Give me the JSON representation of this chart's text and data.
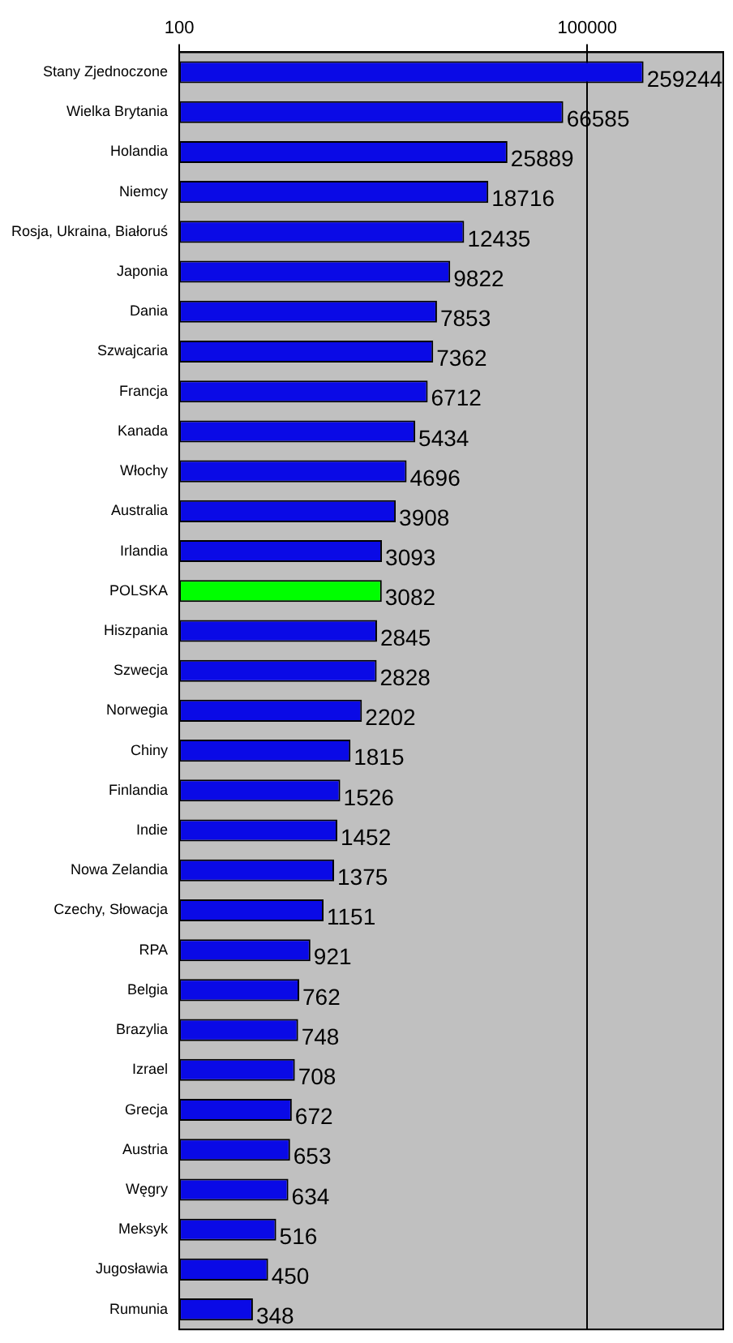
{
  "chart_data": {
    "type": "bar",
    "orientation": "horizontal",
    "log": "x",
    "categories": [
      "Stany Zjednoczone",
      "Wielka Brytania",
      "Holandia",
      "Niemcy",
      "Rosja, Ukraina, Białoruś",
      "Japonia",
      "Dania",
      "Szwajcaria",
      "Francja",
      "Kanada",
      "Włochy",
      "Australia",
      "Irlandia",
      "POLSKA",
      "Hiszpania",
      "Szwecja",
      "Norwegia",
      "Chiny",
      "Finlandia",
      "Indie",
      "Nowa Zelandia",
      "Czechy, Słowacja",
      "RPA",
      "Belgia",
      "Brazylia",
      "Izrael",
      "Grecja",
      "Austria",
      "Węgry",
      "Meksyk",
      "Jugosławia",
      "Rumunia"
    ],
    "values": [
      259244,
      66585,
      25889,
      18716,
      12435,
      9822,
      7853,
      7362,
      6712,
      5434,
      4696,
      3908,
      3093,
      3082,
      2845,
      2828,
      2202,
      1815,
      1526,
      1452,
      1375,
      1151,
      921,
      762,
      748,
      708,
      672,
      653,
      634,
      516,
      450,
      348
    ],
    "colors": [
      "#0a0ae6",
      "#0a0ae6",
      "#0a0ae6",
      "#0a0ae6",
      "#0a0ae6",
      "#0a0ae6",
      "#0a0ae6",
      "#0a0ae6",
      "#0a0ae6",
      "#0a0ae6",
      "#0a0ae6",
      "#0a0ae6",
      "#0a0ae6",
      "#00ff00",
      "#0a0ae6",
      "#0a0ae6",
      "#0a0ae6",
      "#0a0ae6",
      "#0a0ae6",
      "#0a0ae6",
      "#0a0ae6",
      "#0a0ae6",
      "#0a0ae6",
      "#0a0ae6",
      "#0a0ae6",
      "#0a0ae6",
      "#0a0ae6",
      "#0a0ae6",
      "#0a0ae6",
      "#0a0ae6",
      "#0a0ae6",
      "#0a0ae6"
    ],
    "xlim": [
      100,
      1000000
    ],
    "xticks": [
      100,
      100000
    ],
    "grid": "x",
    "legend": false,
    "data_labels": true
  }
}
